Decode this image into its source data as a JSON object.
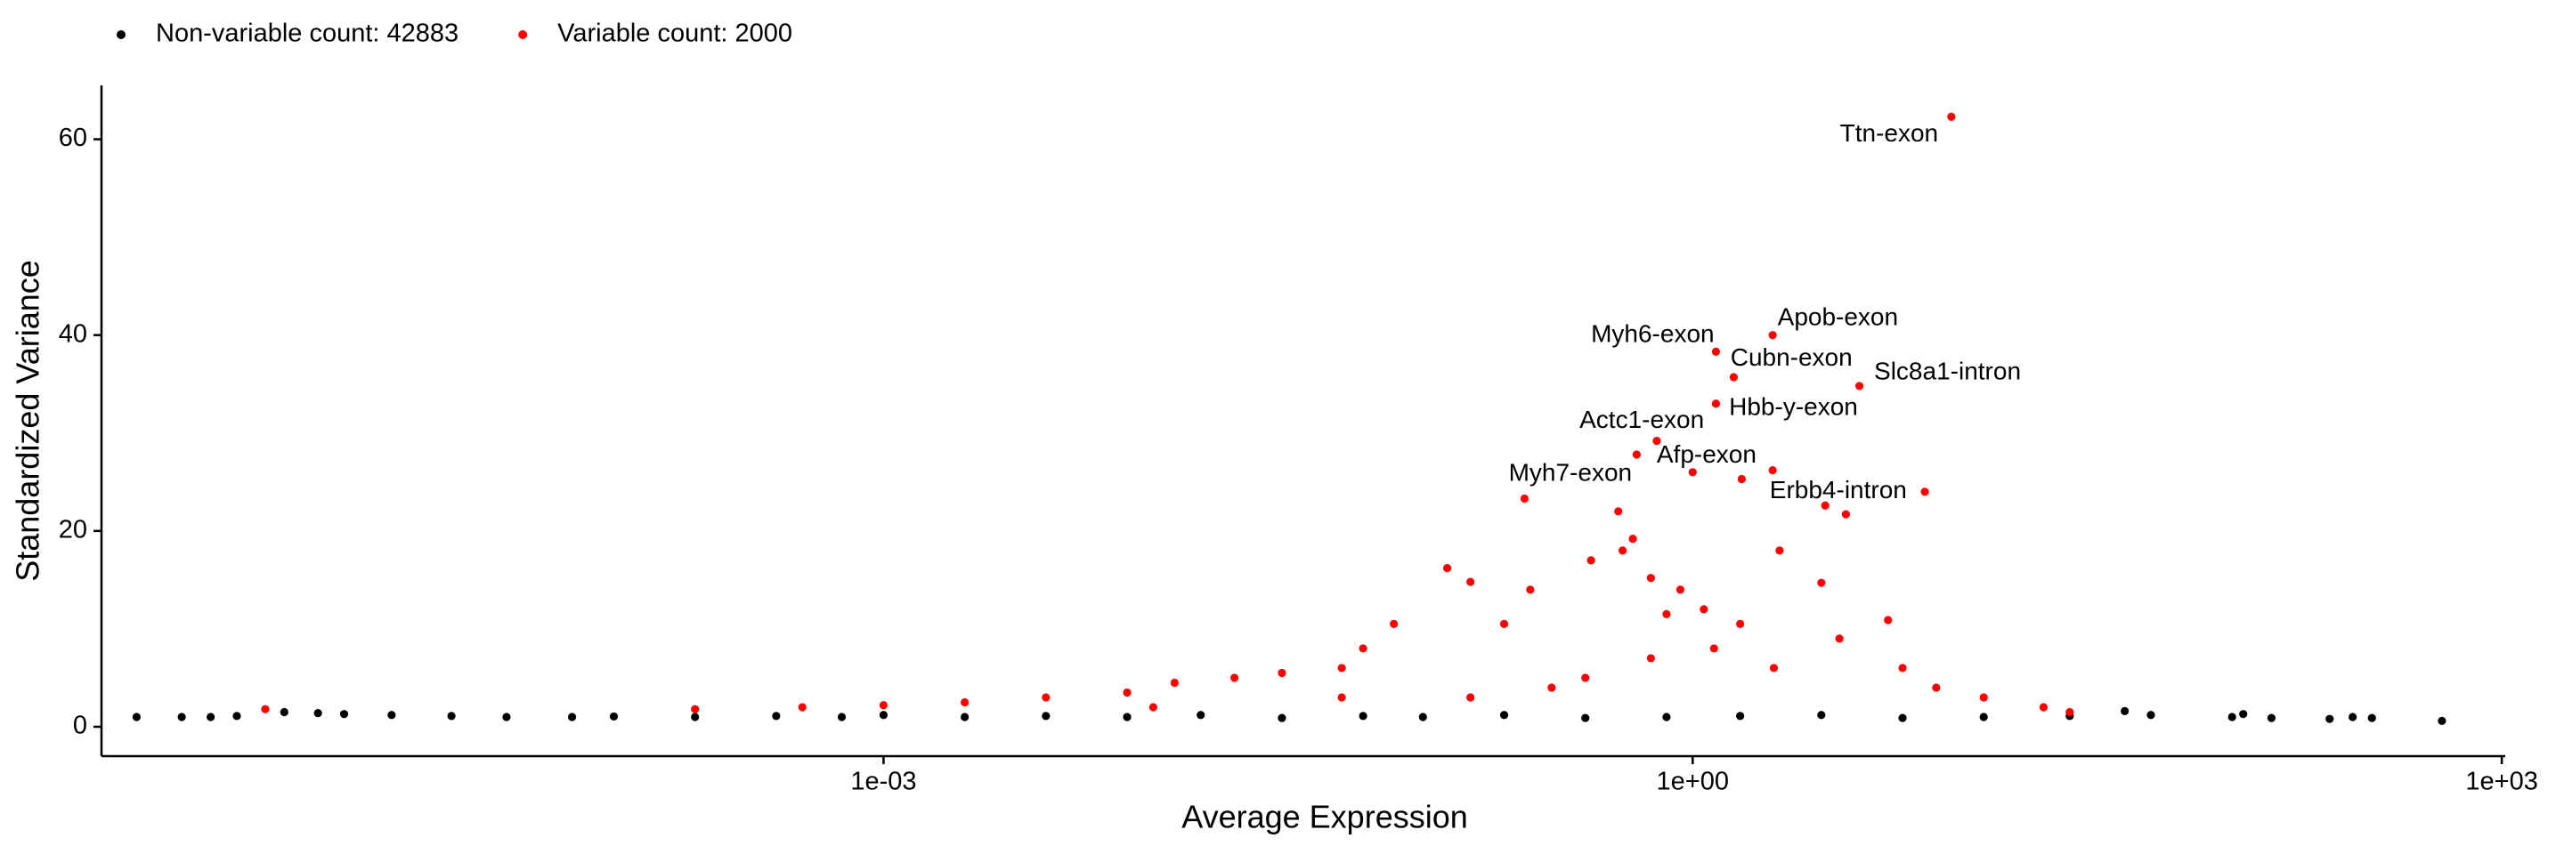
{
  "chart_data": {
    "type": "scatter",
    "xlabel": "Average Expression",
    "ylabel": "Standardized Variance",
    "xlog": true,
    "grid": false,
    "legend": "top-left",
    "xlim": [
      1.26e-06,
      1030
    ],
    "xticks": [
      {
        "value": 0.001,
        "label": "1e-03"
      },
      {
        "value": 1,
        "label": "1e+00"
      },
      {
        "value": 1000,
        "label": "1e+03"
      }
    ],
    "ylim": [
      -3,
      65.5
    ],
    "yticks": [
      0,
      20,
      40,
      60
    ],
    "series": [
      {
        "name": "Non-variable count: 42883",
        "color": "#000000",
        "x": [
          1.7e-06,
          2.5e-06,
          3.2e-06,
          4e-06,
          6e-06,
          8e-06,
          1e-05,
          1.5e-05,
          2.5e-05,
          4e-05,
          7e-05,
          0.0001,
          0.0002,
          0.0004,
          0.0007,
          0.001,
          0.002,
          0.004,
          0.008,
          0.015,
          0.03,
          0.06,
          0.1,
          0.2,
          0.4,
          0.8,
          1.5,
          3,
          6,
          12,
          25,
          40,
          50,
          100,
          110,
          140,
          230,
          280,
          330,
          600
        ],
        "values": [
          1.0,
          1.0,
          1.0,
          1.1,
          1.5,
          1.4,
          1.3,
          1.2,
          1.1,
          1.0,
          1.0,
          1.05,
          1.0,
          1.1,
          1.0,
          1.2,
          1.0,
          1.1,
          1.0,
          1.2,
          0.9,
          1.1,
          1.0,
          1.2,
          0.9,
          1.0,
          1.1,
          1.2,
          0.9,
          1.0,
          1.1,
          1.6,
          1.2,
          1.0,
          1.3,
          0.9,
          0.8,
          1.0,
          0.9,
          0.6
        ]
      },
      {
        "name": "Variable count: 2000",
        "color": "#ff0000",
        "x": [
          9.1,
          1.98,
          1.22,
          1.42,
          4.15,
          1.22,
          0.736,
          1.0,
          0.238,
          7.26,
          5.1e-06,
          0.0002,
          0.0005,
          0.001,
          0.002,
          0.004,
          0.008,
          0.012,
          0.02,
          0.03,
          0.05,
          0.06,
          0.078,
          0.123,
          0.15,
          0.2,
          0.25,
          0.42,
          0.53,
          0.6,
          0.55,
          0.7,
          0.8,
          0.9,
          1.1,
          2.1,
          1.5,
          3.1,
          3.7,
          3.0,
          3.5,
          5.3,
          6,
          8,
          12,
          20,
          25,
          1.52,
          0.62,
          1.98,
          0.3,
          0.15,
          0.4,
          0.7,
          1.2,
          2,
          0.05,
          0.01
        ],
        "values": [
          62.3,
          40,
          38.3,
          35.7,
          34.8,
          33,
          29.2,
          26,
          23.3,
          24,
          1.8,
          1.8,
          2.0,
          2.2,
          2.5,
          3.0,
          3.5,
          4.5,
          5.0,
          5.5,
          6.0,
          8.0,
          10.5,
          16.2,
          14.8,
          10.5,
          14,
          17,
          22,
          19.2,
          18,
          15.2,
          11.5,
          14,
          12,
          18,
          10.5,
          22.6,
          21.7,
          14.7,
          9,
          10.9,
          6,
          4,
          3,
          2,
          1.5,
          25.3,
          27.8,
          26.2,
          4,
          3,
          5,
          7,
          8,
          6,
          3,
          2
        ],
        "labels": [
          "Ttn-exon",
          "Apob-exon",
          "Myh6-exon",
          "Cubn-exon",
          "Slc8a1-intron",
          "Hbb-y-exon",
          "Actc1-exon",
          "Afp-exon",
          "Myh7-exon",
          "Erbb4-intron",
          null,
          null,
          null,
          null,
          null,
          null,
          null,
          null,
          null,
          null,
          null,
          null,
          null,
          null,
          null,
          null,
          null,
          null,
          null,
          null,
          null,
          null,
          null,
          null,
          null,
          null,
          null,
          null,
          null,
          null,
          null,
          null,
          null,
          null,
          null,
          null,
          null,
          null,
          null,
          null,
          null,
          null,
          null,
          null,
          null,
          null,
          null,
          null
        ]
      }
    ]
  }
}
